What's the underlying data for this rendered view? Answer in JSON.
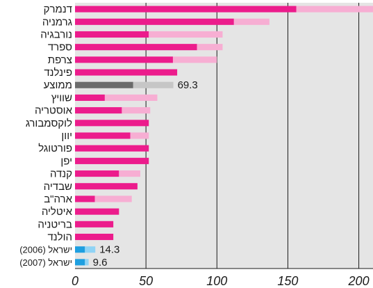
{
  "chart_data": {
    "type": "bar",
    "orientation": "horizontal",
    "stacked": true,
    "title": "",
    "xlabel": "",
    "ylabel": "",
    "xlim": [
      0,
      210
    ],
    "xticks": [
      0,
      50,
      100,
      150,
      200
    ],
    "grid": true,
    "legend": "none",
    "categories": [
      "דנמרק",
      "גרמניה",
      "נורבגיה",
      "ספרד",
      "צרפת",
      "פינלנד",
      "ממוצע",
      "שוויץ",
      "אוסטריה",
      "לוקסמבורג",
      "יוון",
      "פורטוגל",
      "יפן",
      "קנדה",
      "שבדיה",
      "ארה\"ב",
      "איטליה",
      "בריטניה",
      "הולנד",
      "ישראל (2006)",
      "ישראל (2007)"
    ],
    "segment1": [
      156,
      112,
      52,
      86,
      69,
      72,
      41,
      21,
      33,
      52,
      39,
      52,
      52,
      31,
      44,
      14,
      31,
      27,
      27,
      7,
      7
    ],
    "segment2": [
      54,
      25,
      52,
      18,
      31,
      0,
      28.3,
      37,
      20,
      0,
      13,
      0,
      0,
      15,
      0,
      26,
      0,
      0,
      0,
      7.3,
      2.6
    ],
    "highlight": {
      "6": {
        "value_label": "69.3",
        "colors": [
          "#6b6b6b",
          "#c6c6c6"
        ]
      },
      "19": {
        "value_label": "14.3",
        "colors": [
          "#1e9fe0",
          "#8fd3f5"
        ]
      },
      "20": {
        "value_label": "9.6",
        "colors": [
          "#1e9fe0",
          "#8fd3f5"
        ]
      }
    },
    "colors": {
      "segment1": "#ec1c8c",
      "segment2": "#f7aed3",
      "background": "#e5e5e5",
      "grid": "#1a1a1a"
    }
  }
}
